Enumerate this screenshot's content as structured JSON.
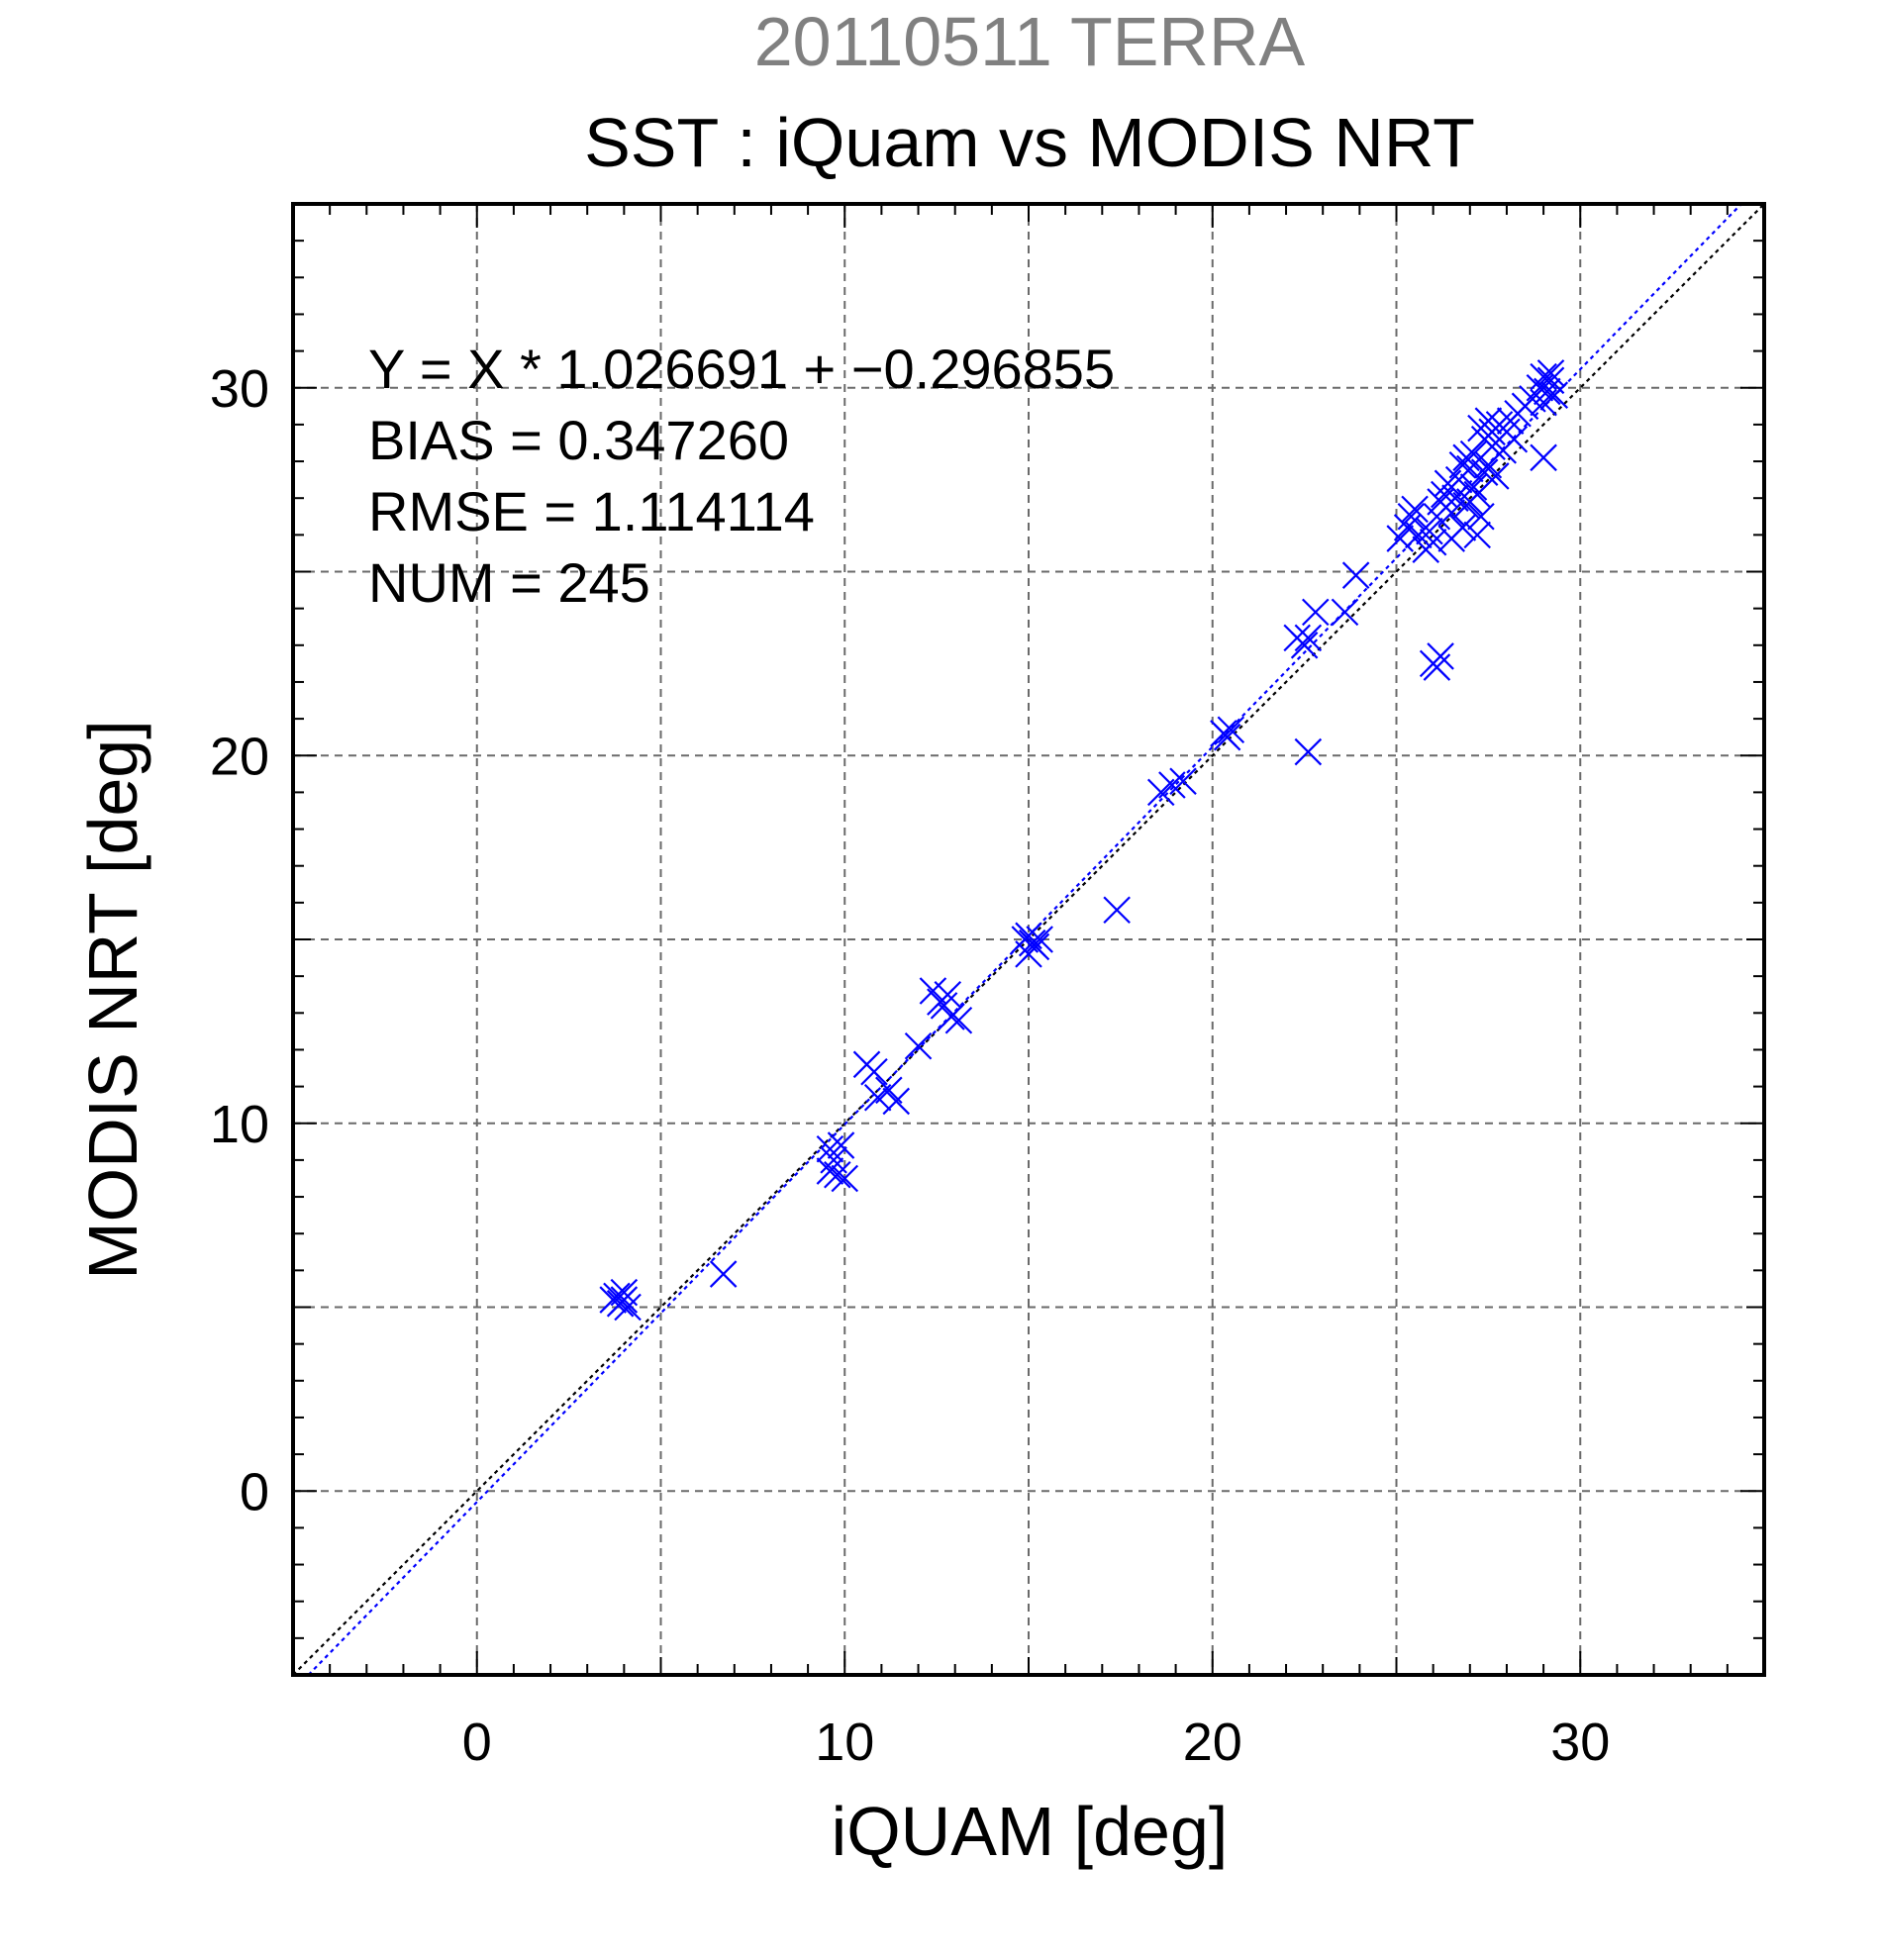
{
  "supertitle": "20110511 TERRA",
  "chart_data": {
    "type": "scatter",
    "title": "SST : iQuam vs MODIS NRT",
    "xlabel": "iQUAM [deg]",
    "ylabel": "MODIS NRT [deg]",
    "xlim": [
      -5,
      35
    ],
    "ylim": [
      -5,
      35
    ],
    "xticks": [
      0,
      10,
      20,
      30
    ],
    "yticks": [
      0,
      10,
      20,
      30
    ],
    "grid_step": 5,
    "grid": true,
    "marker": "x",
    "marker_color": "#0000ff",
    "fit_line_color": "#0000ff",
    "identity_line_color": "#000000",
    "fit": {
      "slope": 1.026691,
      "intercept": -0.296855
    },
    "stats": {
      "equation": "Y = X * 1.026691 + −0.296855",
      "bias": "BIAS = 0.347260",
      "rmse": "RMSE = 1.114114",
      "num": "NUM = 245"
    },
    "series": [
      {
        "points": [
          [
            3.8,
            5.3
          ],
          [
            3.9,
            5.1
          ],
          [
            4.0,
            5.4
          ],
          [
            3.7,
            5.2
          ],
          [
            4.1,
            5.0
          ],
          [
            4.0,
            5.2
          ],
          [
            6.7,
            5.9
          ],
          [
            9.6,
            9.3
          ],
          [
            9.7,
            9.0
          ],
          [
            9.8,
            8.6
          ],
          [
            10.0,
            8.5
          ],
          [
            9.6,
            8.7
          ],
          [
            9.9,
            9.4
          ],
          [
            10.6,
            11.6
          ],
          [
            10.8,
            11.4
          ],
          [
            10.9,
            10.7
          ],
          [
            11.2,
            10.9
          ],
          [
            11.4,
            10.6
          ],
          [
            12.0,
            12.1
          ],
          [
            12.4,
            13.6
          ],
          [
            12.6,
            13.3
          ],
          [
            12.8,
            13.5
          ],
          [
            12.9,
            12.9
          ],
          [
            13.1,
            12.8
          ],
          [
            12.7,
            13.2
          ],
          [
            15.0,
            15.1
          ],
          [
            15.1,
            14.9
          ],
          [
            15.2,
            14.8
          ],
          [
            15.0,
            14.6
          ],
          [
            15.3,
            15.0
          ],
          [
            14.9,
            15.0
          ],
          [
            17.4,
            15.8
          ],
          [
            18.6,
            19.0
          ],
          [
            18.9,
            19.2
          ],
          [
            19.2,
            19.3
          ],
          [
            20.3,
            20.6
          ],
          [
            20.4,
            20.5
          ],
          [
            20.5,
            20.7
          ],
          [
            22.3,
            23.2
          ],
          [
            22.5,
            23.0
          ],
          [
            22.6,
            23.2
          ],
          [
            22.8,
            23.9
          ],
          [
            22.6,
            20.1
          ],
          [
            23.6,
            23.9
          ],
          [
            23.9,
            24.9
          ],
          [
            25.1,
            25.9
          ],
          [
            25.3,
            26.2
          ],
          [
            25.5,
            26.7
          ],
          [
            25.6,
            26.0
          ],
          [
            25.8,
            25.6
          ],
          [
            25.4,
            26.5
          ],
          [
            25.9,
            26.1
          ],
          [
            26.0,
            25.8
          ],
          [
            26.2,
            26.9
          ],
          [
            26.3,
            27.1
          ],
          [
            26.1,
            26.5
          ],
          [
            26.4,
            27.4
          ],
          [
            26.5,
            26.6
          ],
          [
            26.6,
            27.0
          ],
          [
            26.7,
            27.5
          ],
          [
            26.5,
            25.9
          ],
          [
            26.8,
            26.2
          ],
          [
            26.9,
            26.8
          ],
          [
            27.0,
            27.8
          ],
          [
            27.1,
            28.2
          ],
          [
            27.2,
            27.1
          ],
          [
            27.3,
            26.5
          ],
          [
            27.4,
            28.6
          ],
          [
            27.5,
            27.9
          ],
          [
            27.2,
            26.0
          ],
          [
            27.3,
            28.9
          ],
          [
            27.6,
            28.4
          ],
          [
            27.7,
            27.6
          ],
          [
            27.8,
            29.0
          ],
          [
            27.9,
            28.3
          ],
          [
            28.0,
            28.8
          ],
          [
            28.1,
            29.1
          ],
          [
            28.2,
            28.6
          ],
          [
            28.3,
            29.3
          ],
          [
            26.8,
            27.9
          ],
          [
            27.0,
            26.9
          ],
          [
            27.5,
            29.1
          ],
          [
            27.6,
            28.8
          ],
          [
            27.1,
            27.3
          ],
          [
            26.9,
            28.1
          ],
          [
            27.4,
            27.7
          ],
          [
            28.5,
            29.5
          ],
          [
            28.7,
            29.7
          ],
          [
            28.9,
            30.0
          ],
          [
            29.0,
            30.3
          ],
          [
            29.1,
            29.9
          ],
          [
            29.2,
            30.2
          ],
          [
            29.3,
            29.8
          ],
          [
            29.0,
            29.6
          ],
          [
            29.2,
            30.4
          ],
          [
            29.0,
            28.1
          ],
          [
            26.0,
            22.5
          ],
          [
            26.2,
            22.7
          ],
          [
            26.1,
            22.4
          ]
        ]
      }
    ]
  }
}
